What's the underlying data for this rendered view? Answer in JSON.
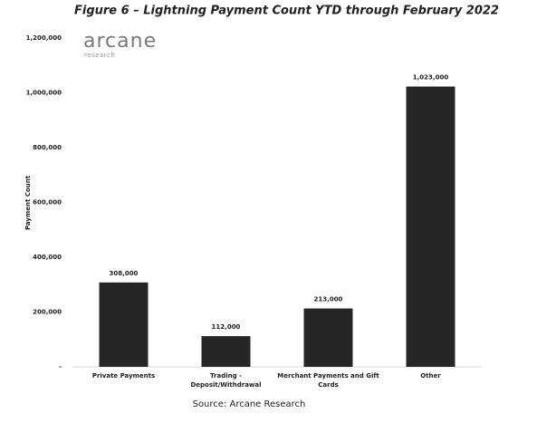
{
  "logo": {
    "name": "arcane",
    "tagline": "research"
  },
  "chart_data": {
    "type": "bar",
    "title": "Figure 6 – Lightning Payment Count YTD through February 2022",
    "y_label": "Payment Count",
    "source": "Source: Arcane Research",
    "categories": [
      "Private Payments",
      "Trading - Deposit/Withdrawal",
      "Merchant Payments and Gift Cards",
      "Other"
    ],
    "values": [
      308000,
      112000,
      213000,
      1023000
    ],
    "value_labels": [
      "308,000",
      "112,000",
      "213,000",
      "1,023,000"
    ],
    "color": "#262626",
    "ylim": [
      0,
      1200000
    ],
    "yticks": [
      {
        "value": 0,
        "label": "-"
      },
      {
        "value": 200000,
        "label": "200,000"
      },
      {
        "value": 400000,
        "label": "400,000"
      },
      {
        "value": 600000,
        "label": "600,000"
      },
      {
        "value": 800000,
        "label": "800,000"
      },
      {
        "value": 1000000,
        "label": "1,000,000"
      },
      {
        "value": 1200000,
        "label": "1,200,000"
      }
    ],
    "grid": false
  }
}
